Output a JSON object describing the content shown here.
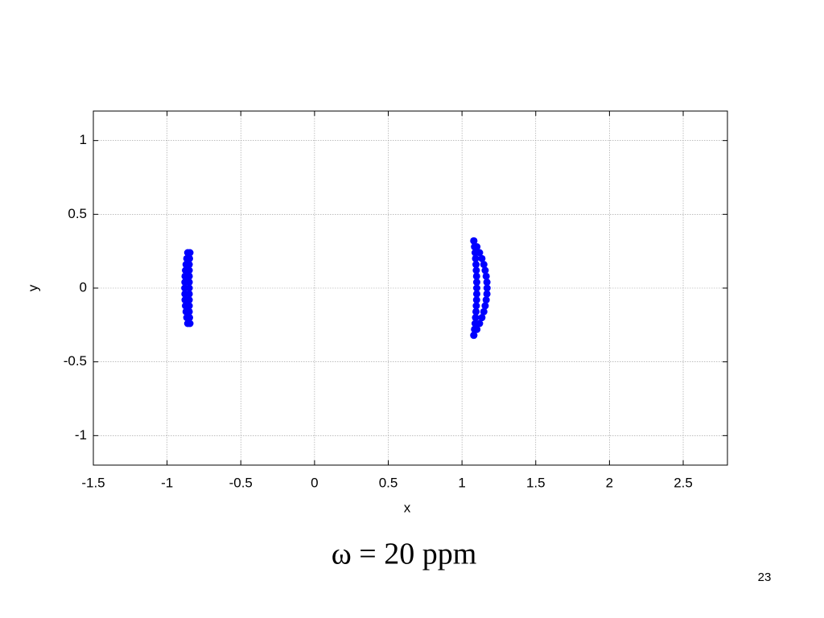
{
  "chart_data": {
    "type": "scatter",
    "xlabel": "x",
    "ylabel": "y",
    "caption": "ω = 20 ppm",
    "page_number": "23",
    "xlim": [
      -1.5,
      2.8
    ],
    "ylim": [
      -1.2,
      1.2
    ],
    "xticks": [
      -1.5,
      -1,
      -0.5,
      0,
      0.5,
      1,
      1.5,
      2,
      2.5
    ],
    "yticks": [
      -1,
      -0.5,
      0,
      0.5,
      1
    ],
    "grid": true,
    "series": [
      {
        "color": "#0000ff",
        "x": [
          1.08,
          1.101,
          1.119,
          1.135,
          1.148,
          1.157,
          1.164,
          1.169,
          1.17,
          1.169,
          1.164,
          1.157,
          1.148,
          1.135,
          1.119,
          1.101,
          1.08,
          1.08,
          1.085,
          1.089,
          1.092,
          1.095,
          1.097,
          1.099,
          1.1,
          1.1,
          1.1,
          1.099,
          1.097,
          1.095,
          1.092,
          1.089,
          1.085,
          1.08,
          -0.86,
          -0.866,
          -0.871,
          -0.875,
          -0.878,
          -0.879,
          -0.88,
          -0.879,
          -0.878,
          -0.875,
          -0.871,
          -0.866,
          -0.86,
          -0.845,
          -0.848,
          -0.85,
          -0.85,
          -0.85,
          -0.85,
          -0.85,
          -0.85,
          -0.85,
          -0.85,
          -0.85,
          -0.848,
          -0.845
        ],
        "y": [
          -0.32,
          -0.28,
          -0.24,
          -0.2,
          -0.16,
          -0.12,
          -0.08,
          -0.04,
          0,
          0.04,
          0.08,
          0.12,
          0.16,
          0.2,
          0.24,
          0.28,
          0.32,
          -0.32,
          -0.28,
          -0.24,
          -0.2,
          -0.16,
          -0.12,
          -0.08,
          -0.04,
          0,
          0.04,
          0.08,
          0.12,
          0.16,
          0.2,
          0.24,
          0.28,
          0.32,
          -0.24,
          -0.2,
          -0.16,
          -0.12,
          -0.08,
          -0.04,
          0,
          0.04,
          0.08,
          0.12,
          0.16,
          0.2,
          0.24,
          -0.24,
          -0.2,
          -0.16,
          -0.12,
          -0.08,
          -0.04,
          0,
          0.04,
          0.08,
          0.12,
          0.16,
          0.2,
          0.24
        ]
      }
    ]
  }
}
